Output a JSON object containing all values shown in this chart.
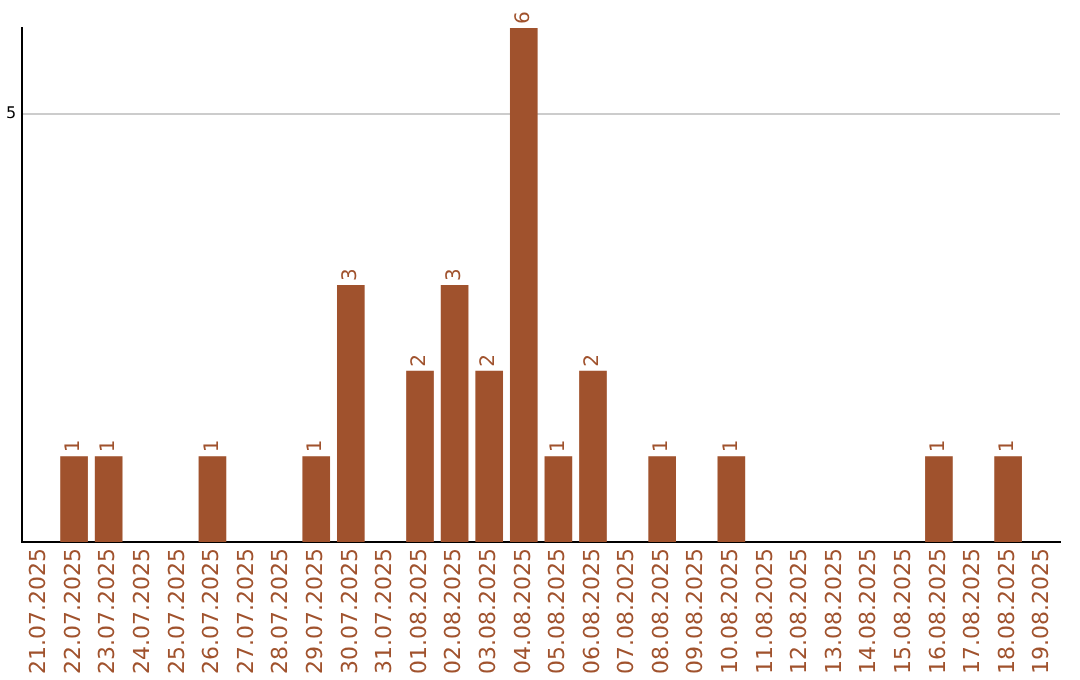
{
  "chart_data": {
    "type": "bar",
    "categories": [
      "21.07.2025",
      "22.07.2025",
      "23.07.2025",
      "24.07.2025",
      "25.07.2025",
      "26.07.2025",
      "27.07.2025",
      "28.07.2025",
      "29.07.2025",
      "30.07.2025",
      "31.07.2025",
      "01.08.2025",
      "02.08.2025",
      "03.08.2025",
      "04.08.2025",
      "05.08.2025",
      "06.08.2025",
      "07.08.2025",
      "08.08.2025",
      "09.08.2025",
      "10.08.2025",
      "11.08.2025",
      "12.08.2025",
      "13.08.2025",
      "14.08.2025",
      "15.08.2025",
      "16.08.2025",
      "17.08.2025",
      "18.08.2025",
      "19.08.2025"
    ],
    "values": [
      0,
      1,
      1,
      0,
      0,
      1,
      0,
      0,
      1,
      3,
      0,
      2,
      3,
      2,
      6,
      1,
      2,
      0,
      1,
      0,
      1,
      0,
      0,
      0,
      0,
      0,
      1,
      0,
      1,
      0
    ],
    "value_labels": [
      null,
      "1",
      "1",
      null,
      null,
      "1",
      null,
      null,
      "1",
      "3",
      null,
      "2",
      "3",
      "2",
      "6",
      "1",
      "2",
      null,
      "1",
      null,
      "1",
      null,
      null,
      null,
      null,
      null,
      "1",
      null,
      "1",
      null
    ],
    "color": "#a0522d",
    "ylim": [
      0,
      6
    ],
    "yticks": [
      5
    ],
    "grid": "y",
    "legend": false
  }
}
